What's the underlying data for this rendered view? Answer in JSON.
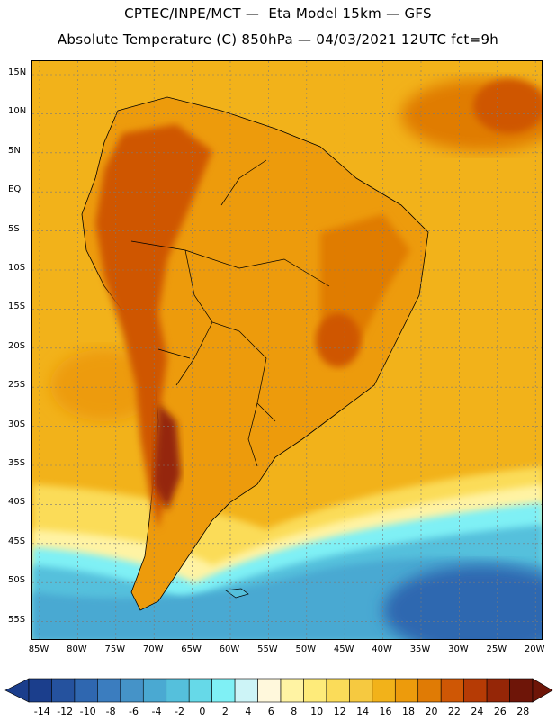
{
  "header": {
    "title_line1": "CPTEC/INPE/MCT —  Eta Model 15km — GFS",
    "title_line2": "Absolute Temperature (C) 850hPa — 04/03/2021 12UTC fct=9h"
  },
  "axes": {
    "lat_labels": [
      "15N",
      "10N",
      "5N",
      "EQ",
      "5S",
      "10S",
      "15S",
      "20S",
      "25S",
      "30S",
      "35S",
      "40S",
      "45S",
      "50S",
      "55S"
    ],
    "lon_labels": [
      "85W",
      "80W",
      "75W",
      "70W",
      "65W",
      "60W",
      "55W",
      "50W",
      "45W",
      "40W",
      "35W",
      "30W",
      "25W",
      "20W"
    ],
    "grid": "dashed"
  },
  "colorbar": {
    "labels": [
      "-14",
      "-12",
      "-10",
      "-8",
      "-6",
      "-4",
      "-2",
      "0",
      "2",
      "4",
      "6",
      "8",
      "10",
      "12",
      "14",
      "16",
      "18",
      "20",
      "22",
      "24",
      "26",
      "28"
    ],
    "colors": [
      "#1b3e8c",
      "#25529e",
      "#2f67b0",
      "#3b7dbf",
      "#4593c8",
      "#4aa9d2",
      "#55c0dc",
      "#66d9e8",
      "#7ff0f5",
      "#cdf4f7",
      "#fff8dc",
      "#fff3a3",
      "#feeb7a",
      "#fbdc59",
      "#f6c940",
      "#f2b21a",
      "#ed9b0c",
      "#e07b05",
      "#cf5705",
      "#b63b05",
      "#952607",
      "#6e1508"
    ]
  },
  "map": {
    "ocean_north_color": "#f2b21a",
    "ocean_south_color": "#4aa9d2",
    "land_hot_color": "#e07b05",
    "andes_color": "#b63b05"
  }
}
